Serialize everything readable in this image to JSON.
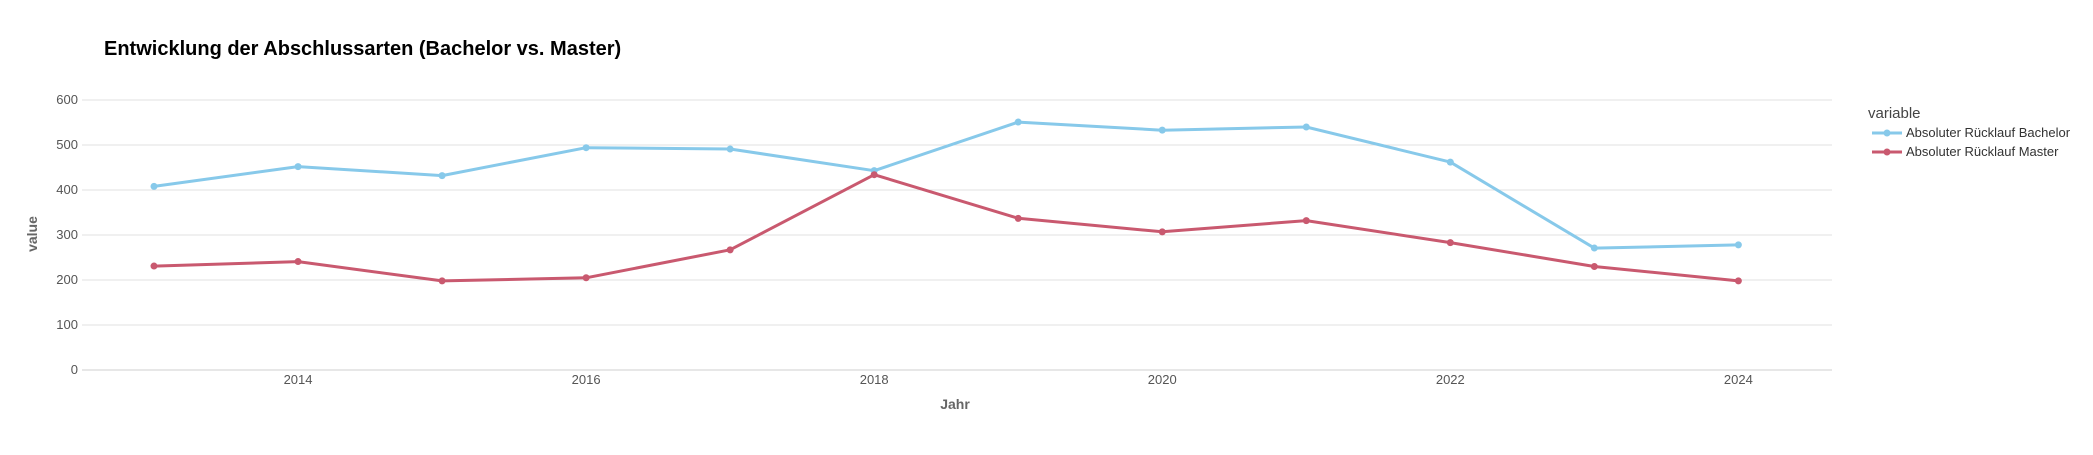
{
  "chart_data": {
    "type": "line",
    "title": "Entwicklung der Abschlussarten (Bachelor vs. Master)",
    "xlabel": "Jahr",
    "ylabel": "value",
    "x": [
      2013,
      2014,
      2015,
      2016,
      2017,
      2018,
      2019,
      2020,
      2021,
      2022,
      2023,
      2024
    ],
    "x_ticks": [
      "2014",
      "2016",
      "2018",
      "2020",
      "2022",
      "2024"
    ],
    "y_ticks": [
      "0",
      "100",
      "200",
      "300",
      "400",
      "500",
      "600"
    ],
    "xlim": [
      2012.5,
      2024.65
    ],
    "ylim": [
      0,
      600
    ],
    "grid": true,
    "legend": {
      "title": "variable",
      "placement": "right"
    },
    "series": [
      {
        "name": "Absoluter Rücklauf Bachelor",
        "color": "#87c9ea",
        "values": [
          408,
          452,
          432,
          494,
          491,
          443,
          551,
          533,
          540,
          462,
          271,
          278
        ]
      },
      {
        "name": "Absoluter Rücklauf Master",
        "color": "#c9596f",
        "values": [
          231,
          241,
          198,
          205,
          267,
          434,
          337,
          307,
          332,
          283,
          230,
          198
        ]
      }
    ]
  }
}
